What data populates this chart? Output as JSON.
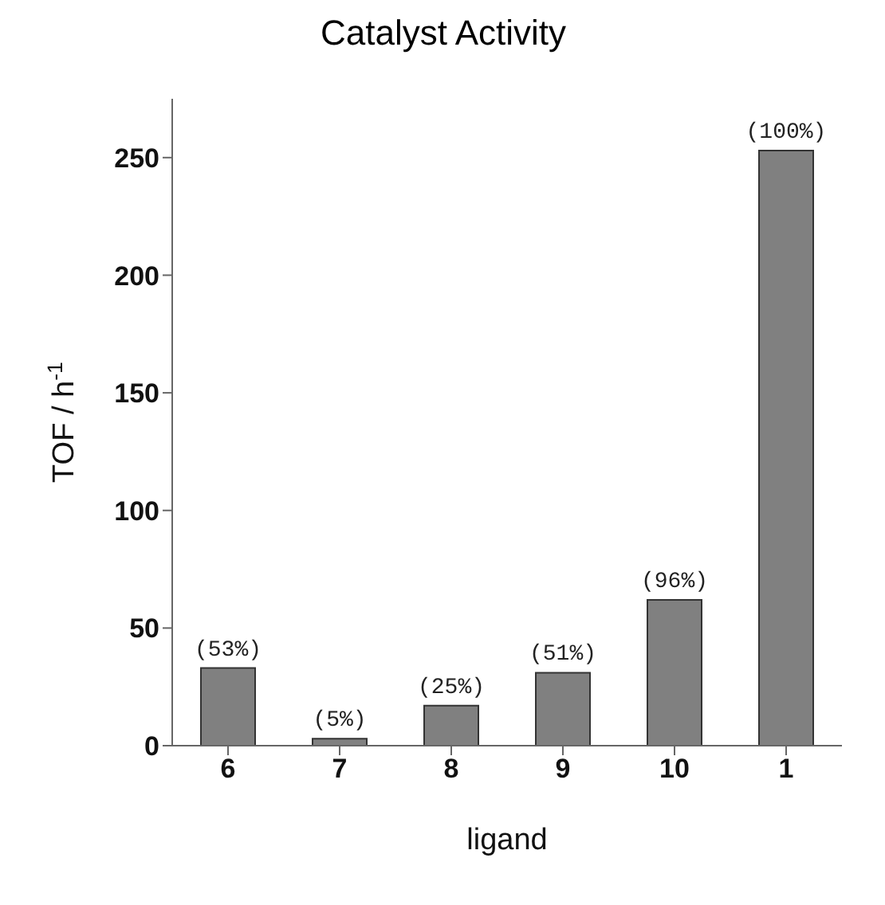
{
  "chart_data": {
    "type": "bar",
    "title": "Catalyst Activity",
    "xlabel": "ligand",
    "ylabel": "TOF / h$^{-1}$",
    "categories": [
      "6",
      "7",
      "8",
      "9",
      "10",
      "1"
    ],
    "values": [
      33,
      3,
      17,
      31,
      62,
      253
    ],
    "annotations": [
      {
        "text": "(53%)",
        "x": "6",
        "y": 33
      },
      {
        "text": "(5%)",
        "x": "7",
        "y": 3
      },
      {
        "text": "(25%)",
        "x": "8",
        "y": 17
      },
      {
        "text": "(51%)",
        "x": "9",
        "y": 31
      },
      {
        "text": "(96%)",
        "x": "10",
        "y": 62
      },
      {
        "text": "(100%)",
        "x": "1",
        "y": 253
      }
    ],
    "color": "#808080",
    "ylim": [
      0,
      275
    ],
    "yticks": [
      0,
      50,
      100,
      150,
      200,
      250
    ],
    "grid": false,
    "legend": false
  }
}
